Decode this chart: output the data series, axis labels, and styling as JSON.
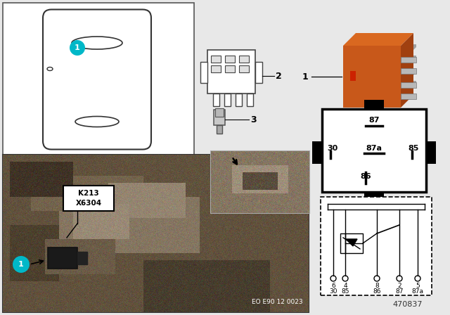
{
  "bg_color": "#e8e8e8",
  "diagram_id": "470837",
  "eo_code": "EO E90 12 0023",
  "relay_color_main": "#c8581a",
  "relay_color_top": "#d96820",
  "relay_color_right": "#a04010",
  "relay_pin_color": "#b0b0b0",
  "teal_color": "#00b8c8",
  "white": "#ffffff",
  "black": "#000000",
  "photo_bg": "#6a5a4a",
  "inset_bg": "#8a7a6a",
  "label_box_text1": "K213",
  "label_box_text2": "X6304",
  "eo_text": "EO E90 12 0023",
  "pin87_label": "87",
  "pin30_label": "30",
  "pin87a_label": "87a",
  "pin85_label": "85",
  "pin86_label": "86",
  "schematic_row1": [
    "6",
    "4",
    "8",
    "2",
    "5"
  ],
  "schematic_row2": [
    "30",
    "85",
    "86",
    "87",
    "87a"
  ],
  "part1": "1",
  "part2": "2",
  "part3": "3"
}
